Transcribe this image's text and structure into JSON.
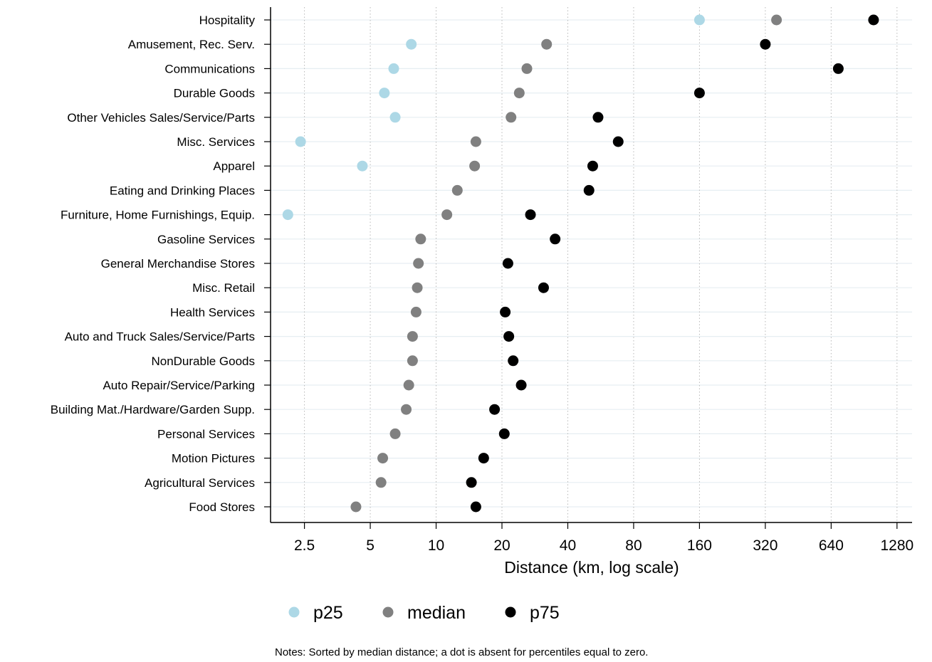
{
  "chart_data": {
    "type": "scatter",
    "xlabel": "Distance (km, log scale)",
    "x_scale": "log2",
    "xlim": [
      1.75,
      1500
    ],
    "x_ticks": [
      2.5,
      5,
      10,
      20,
      40,
      80,
      160,
      320,
      640,
      1280
    ],
    "x_tick_labels": [
      "2.5",
      "5",
      "10",
      "20",
      "40",
      "80",
      "160",
      "320",
      "640",
      "1280"
    ],
    "categories": [
      "Hospitality",
      "Amusement, Rec. Serv.",
      "Communications",
      "Durable Goods",
      "Other Vehicles Sales/Service/Parts",
      "Misc. Services",
      "Apparel",
      "Eating and Drinking Places",
      "Furniture, Home Furnishings, Equip.",
      "Gasoline Services",
      "General Merchandise Stores",
      "Misc. Retail",
      "Health Services",
      "Auto and Truck Sales/Service/Parts",
      "NonDurable Goods",
      "Auto Repair/Service/Parking",
      "Building Mat./Hardware/Garden Supp.",
      "Personal Services",
      "Motion Pictures",
      "Agricultural Services",
      "Food Stores"
    ],
    "series": [
      {
        "name": "p25",
        "color": "#add8e6",
        "values": [
          160,
          7.7,
          6.4,
          5.8,
          6.5,
          2.4,
          4.6,
          null,
          2.1,
          null,
          null,
          null,
          null,
          null,
          null,
          null,
          null,
          null,
          null,
          null,
          null
        ]
      },
      {
        "name": "median",
        "color": "#808080",
        "values": [
          360,
          32,
          26,
          24,
          22,
          15.2,
          15,
          12.5,
          11.2,
          8.5,
          8.3,
          8.2,
          8.1,
          7.8,
          7.8,
          7.5,
          7.3,
          6.5,
          5.7,
          5.6,
          4.3
        ]
      },
      {
        "name": "p75",
        "color": "#000000",
        "values": [
          1000,
          320,
          690,
          160,
          55,
          68,
          52,
          50,
          27,
          35,
          21.3,
          31,
          20.7,
          21.5,
          22.5,
          24.5,
          18.5,
          20.5,
          16.5,
          14.5,
          15.2
        ]
      }
    ],
    "legend_position": "bottom",
    "grid": "vertical dotted lines at x ticks; horizontal light lines per category",
    "note": "Notes: Sorted by median distance; a dot is absent for percentiles equal to zero."
  }
}
